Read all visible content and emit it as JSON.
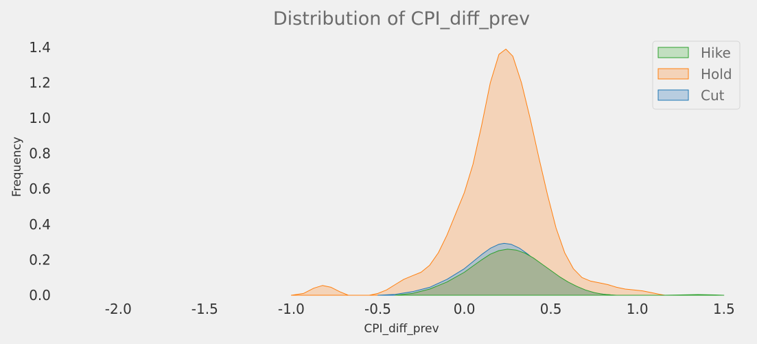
{
  "chart_data": {
    "type": "area",
    "title": "Distribution of CPI_diff_prev",
    "xlabel": "CPI_diff_prev",
    "ylabel": "Frequency",
    "xlim": [
      -2.35,
      1.6
    ],
    "ylim": [
      0,
      1.45
    ],
    "x_ticks": [
      -2.0,
      -1.5,
      -1.0,
      -0.5,
      0.0,
      0.5,
      1.0,
      1.5
    ],
    "x_tick_labels": [
      "-2.0",
      "-1.5",
      "-1.0",
      "-0.5",
      "0.0",
      "0.5",
      "1.0",
      "1.5"
    ],
    "y_ticks": [
      0.0,
      0.2,
      0.4,
      0.6,
      0.8,
      1.0,
      1.2,
      1.4
    ],
    "y_tick_labels": [
      "0.0",
      "0.2",
      "0.4",
      "0.6",
      "0.8",
      "1.0",
      "1.2",
      "1.4"
    ],
    "grid": false,
    "legend_position": "top-right",
    "series": [
      {
        "name": "Hold",
        "fill": "#f4d3b8",
        "stroke": "#ff7f0e",
        "points": [
          [
            -1.0,
            0.0
          ],
          [
            -0.93,
            0.01
          ],
          [
            -0.87,
            0.04
          ],
          [
            -0.82,
            0.055
          ],
          [
            -0.77,
            0.045
          ],
          [
            -0.72,
            0.02
          ],
          [
            -0.67,
            0.0
          ],
          [
            -0.55,
            0.0
          ],
          [
            -0.5,
            0.01
          ],
          [
            -0.45,
            0.03
          ],
          [
            -0.4,
            0.06
          ],
          [
            -0.35,
            0.09
          ],
          [
            -0.3,
            0.11
          ],
          [
            -0.25,
            0.13
          ],
          [
            -0.2,
            0.17
          ],
          [
            -0.15,
            0.24
          ],
          [
            -0.1,
            0.34
          ],
          [
            -0.05,
            0.46
          ],
          [
            0.0,
            0.58
          ],
          [
            0.05,
            0.74
          ],
          [
            0.1,
            0.96
          ],
          [
            0.15,
            1.2
          ],
          [
            0.2,
            1.36
          ],
          [
            0.24,
            1.39
          ],
          [
            0.28,
            1.35
          ],
          [
            0.33,
            1.2
          ],
          [
            0.38,
            1.0
          ],
          [
            0.43,
            0.78
          ],
          [
            0.48,
            0.57
          ],
          [
            0.53,
            0.38
          ],
          [
            0.58,
            0.24
          ],
          [
            0.63,
            0.15
          ],
          [
            0.68,
            0.1
          ],
          [
            0.73,
            0.08
          ],
          [
            0.78,
            0.07
          ],
          [
            0.83,
            0.06
          ],
          [
            0.88,
            0.045
          ],
          [
            0.93,
            0.035
          ],
          [
            0.98,
            0.03
          ],
          [
            1.03,
            0.025
          ],
          [
            1.08,
            0.015
          ],
          [
            1.13,
            0.005
          ],
          [
            1.16,
            0.0
          ]
        ]
      },
      {
        "name": "Cut",
        "fill": "#b1c1cc",
        "stroke": "#1f77b4",
        "points": [
          [
            -0.5,
            0.0
          ],
          [
            -0.4,
            0.005
          ],
          [
            -0.3,
            0.02
          ],
          [
            -0.2,
            0.045
          ],
          [
            -0.1,
            0.09
          ],
          [
            0.0,
            0.15
          ],
          [
            0.05,
            0.19
          ],
          [
            0.1,
            0.23
          ],
          [
            0.15,
            0.265
          ],
          [
            0.2,
            0.288
          ],
          [
            0.23,
            0.293
          ],
          [
            0.27,
            0.288
          ],
          [
            0.32,
            0.265
          ],
          [
            0.37,
            0.23
          ],
          [
            0.42,
            0.19
          ],
          [
            0.47,
            0.15
          ],
          [
            0.52,
            0.11
          ],
          [
            0.57,
            0.08
          ],
          [
            0.62,
            0.055
          ],
          [
            0.67,
            0.035
          ],
          [
            0.72,
            0.02
          ],
          [
            0.77,
            0.01
          ],
          [
            0.82,
            0.004
          ],
          [
            0.87,
            0.0
          ]
        ]
      },
      {
        "name": "Hike",
        "fill": "#a6b396",
        "stroke": "#2ca02c",
        "points": [
          [
            -0.4,
            0.0
          ],
          [
            -0.3,
            0.01
          ],
          [
            -0.2,
            0.035
          ],
          [
            -0.1,
            0.075
          ],
          [
            0.0,
            0.13
          ],
          [
            0.05,
            0.165
          ],
          [
            0.1,
            0.2
          ],
          [
            0.15,
            0.232
          ],
          [
            0.2,
            0.252
          ],
          [
            0.25,
            0.26
          ],
          [
            0.3,
            0.255
          ],
          [
            0.35,
            0.238
          ],
          [
            0.4,
            0.21
          ],
          [
            0.45,
            0.175
          ],
          [
            0.5,
            0.14
          ],
          [
            0.55,
            0.105
          ],
          [
            0.6,
            0.075
          ],
          [
            0.65,
            0.05
          ],
          [
            0.7,
            0.03
          ],
          [
            0.75,
            0.015
          ],
          [
            0.8,
            0.006
          ],
          [
            0.85,
            0.002
          ],
          [
            0.88,
            0.0
          ],
          [
            1.15,
            0.0
          ],
          [
            1.25,
            0.002
          ],
          [
            1.35,
            0.004
          ],
          [
            1.45,
            0.002
          ],
          [
            1.5,
            0.0
          ]
        ]
      }
    ],
    "legend": [
      {
        "name": "Hike",
        "fill": "#c2dfc0",
        "stroke": "#2ca02c"
      },
      {
        "name": "Hold",
        "fill": "#f4d3b8",
        "stroke": "#ff7f0e"
      },
      {
        "name": "Cut",
        "fill": "#b8cde0",
        "stroke": "#1f77b4"
      }
    ]
  }
}
